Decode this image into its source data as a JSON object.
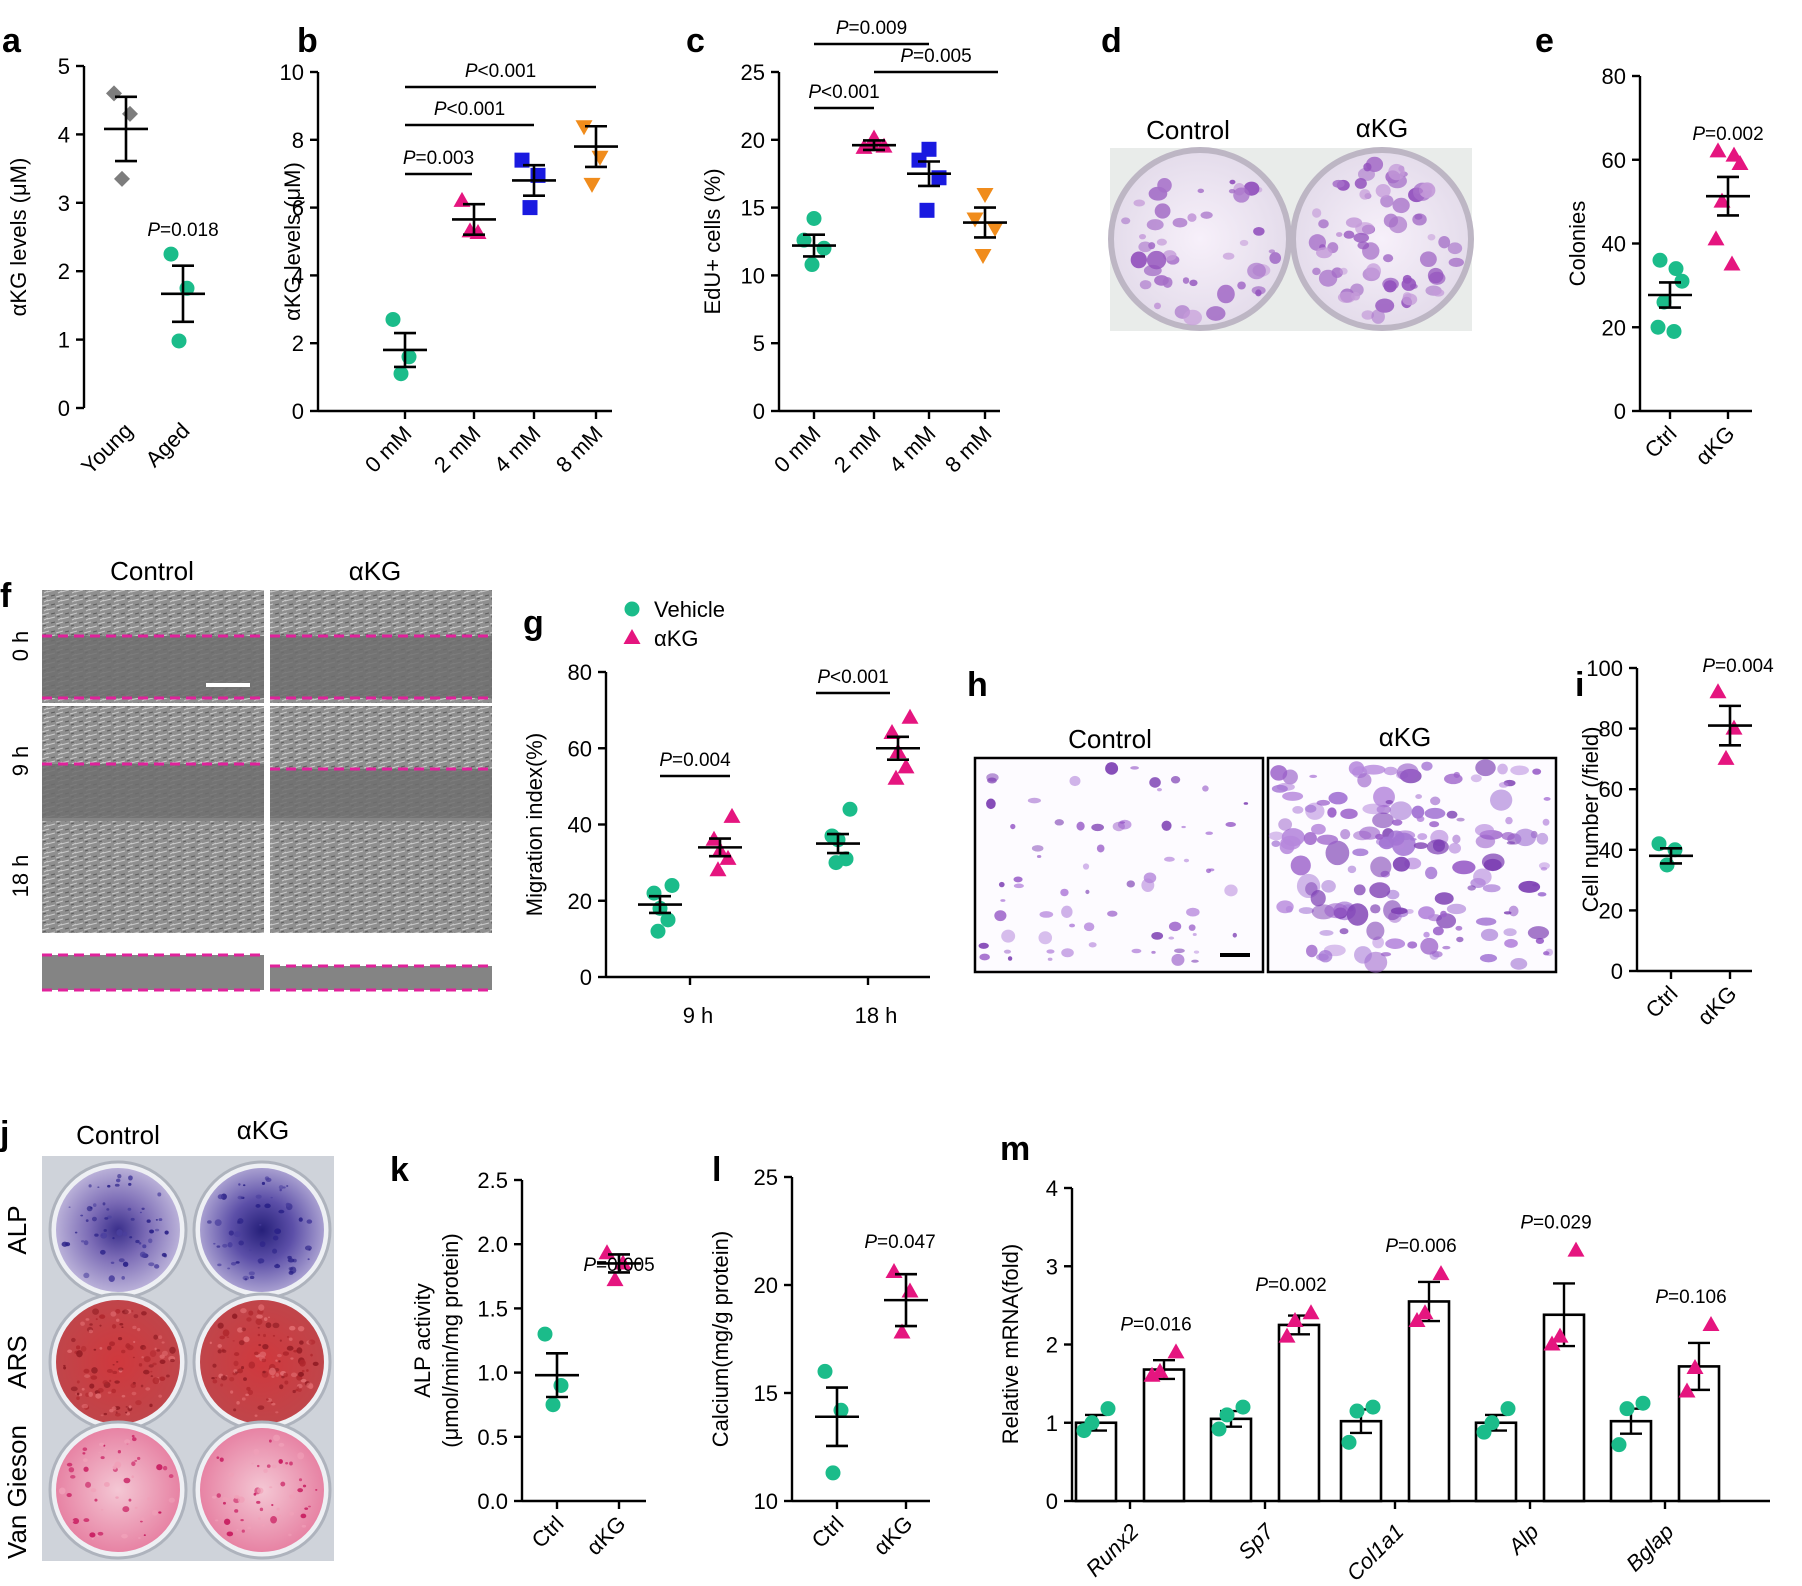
{
  "colors": {
    "green": "#1bbc8a",
    "pink": "#e5157f",
    "gray": "#7d7d7d",
    "blue": "#1a1ae0",
    "orange": "#f08c1c",
    "magenta_line": "#e0229b",
    "stain_purple": "#9a5fc9",
    "stain_red": "#c42a2f"
  },
  "panels": {
    "a": {
      "label": "a",
      "ylabel": "αKG levels (μM)",
      "ylim": [
        0,
        5
      ],
      "yticks": [
        "0",
        "1",
        "2",
        "3",
        "4",
        "5"
      ],
      "categories": [
        "Young",
        "Aged"
      ],
      "p": "P=0.018",
      "groups": [
        {
          "points": [
            4.6,
            4.3,
            3.35
          ],
          "mean": 4.08,
          "sem": 0.47,
          "marker": "diamond",
          "color": "gray"
        },
        {
          "points": [
            2.25,
            1.75,
            0.98
          ],
          "mean": 1.67,
          "sem": 0.41,
          "marker": "circle",
          "color": "green"
        }
      ]
    },
    "b": {
      "label": "b",
      "ylabel": "αKG levels (μM)",
      "ylim": [
        0,
        10
      ],
      "yticks": [
        "0",
        "2",
        "4",
        "6",
        "8",
        "10"
      ],
      "categories": [
        "0 mM",
        "2 mM",
        "4 mM",
        "8 mM"
      ],
      "p": [
        "P=0.003",
        "P<0.001",
        "P<0.001"
      ],
      "groups": [
        {
          "points": [
            2.7,
            1.6,
            1.1
          ],
          "mean": 1.8,
          "sem": 0.5,
          "marker": "circle",
          "color": "green"
        },
        {
          "points": [
            6.2,
            5.25,
            5.3
          ],
          "mean": 5.65,
          "sem": 0.45,
          "marker": "triangle",
          "color": "pink"
        },
        {
          "points": [
            7.4,
            6.95,
            6.0
          ],
          "mean": 6.8,
          "sem": 0.45,
          "marker": "square",
          "color": "blue"
        },
        {
          "points": [
            8.4,
            7.5,
            6.7
          ],
          "mean": 7.8,
          "sem": 0.6,
          "marker": "invtriangle",
          "color": "orange"
        }
      ]
    },
    "c": {
      "label": "c",
      "ylabel": "EdU+ cells (%)",
      "ylim": [
        0,
        25
      ],
      "yticks": [
        "0",
        "5",
        "10",
        "15",
        "20",
        "25"
      ],
      "categories": [
        "0 mM",
        "2 mM",
        "4 mM",
        "8 mM"
      ],
      "p": [
        "P<0.001",
        "P=0.009",
        "P=0.005"
      ],
      "groups": [
        {
          "points": [
            14.2,
            12.6,
            12.0,
            10.8
          ],
          "mean": 12.2,
          "sem": 0.8,
          "marker": "circle",
          "color": "green"
        },
        {
          "points": [
            20.1,
            19.4,
            19.5,
            19.6
          ],
          "mean": 19.6,
          "sem": 0.35,
          "marker": "triangle",
          "color": "pink"
        },
        {
          "points": [
            19.3,
            18.5,
            17.2,
            14.8
          ],
          "mean": 17.5,
          "sem": 0.9,
          "marker": "square",
          "color": "blue"
        },
        {
          "points": [
            16.0,
            14.2,
            13.5,
            11.5
          ],
          "mean": 13.9,
          "sem": 1.1,
          "marker": "invtriangle",
          "color": "orange"
        }
      ]
    },
    "d": {
      "label": "d",
      "titles": [
        "Control",
        "αKG"
      ]
    },
    "e": {
      "label": "e",
      "ylabel": "Colonies",
      "ylim": [
        0,
        80
      ],
      "yticks": [
        "0",
        "20",
        "40",
        "60",
        "80"
      ],
      "categories": [
        "Ctrl",
        "αKG"
      ],
      "p": "P=0.002",
      "groups": [
        {
          "points": [
            36,
            34,
            31,
            26,
            20,
            19
          ],
          "mean": 27.7,
          "sem": 3,
          "marker": "circle",
          "color": "green"
        },
        {
          "points": [
            62,
            61,
            59,
            50,
            41,
            35
          ],
          "mean": 51.3,
          "sem": 4.6,
          "marker": "triangle",
          "color": "pink"
        }
      ]
    },
    "f": {
      "label": "f",
      "titles": [
        "Control",
        "αKG"
      ],
      "rows": [
        "0 h",
        "9 h",
        "18 h"
      ]
    },
    "g": {
      "label": "g",
      "ylabel": "Migration index(%)",
      "ylim": [
        0,
        80
      ],
      "yticks": [
        "0",
        "20",
        "40",
        "60",
        "80"
      ],
      "categories": [
        "9 h",
        "18 h"
      ],
      "legend": [
        "Vehicle",
        "αKG"
      ],
      "p": [
        "P=0.004",
        "P<0.001"
      ],
      "groups": [
        {
          "points": [
            24,
            22,
            18,
            15,
            12
          ],
          "mean": 19,
          "sem": 2.2,
          "marker": "circle",
          "color": "green",
          "cat": 0
        },
        {
          "points": [
            42,
            36,
            33,
            31,
            28
          ],
          "mean": 34,
          "sem": 2.3,
          "marker": "triangle",
          "color": "pink",
          "cat": 0
        },
        {
          "points": [
            44,
            37,
            36,
            31,
            30
          ],
          "mean": 35,
          "sem": 2.5,
          "marker": "circle",
          "color": "green",
          "cat": 1
        },
        {
          "points": [
            68,
            64,
            59,
            55,
            52
          ],
          "mean": 60,
          "sem": 3,
          "marker": "triangle",
          "color": "pink",
          "cat": 1
        }
      ]
    },
    "h": {
      "label": "h",
      "titles": [
        "Control",
        "αKG"
      ]
    },
    "i": {
      "label": "i",
      "ylabel": "Cell number (/field)",
      "ylim": [
        0,
        100
      ],
      "yticks": [
        "0",
        "20",
        "40",
        "60",
        "80",
        "100"
      ],
      "categories": [
        "Ctrl",
        "αKG"
      ],
      "p": "P=0.004",
      "groups": [
        {
          "points": [
            42,
            40,
            35
          ],
          "mean": 38,
          "sem": 2.5,
          "marker": "circle",
          "color": "green"
        },
        {
          "points": [
            92,
            80,
            70
          ],
          "mean": 81,
          "sem": 6.5,
          "marker": "triangle",
          "color": "pink"
        }
      ]
    },
    "j": {
      "label": "j",
      "titles": [
        "Control",
        "αKG"
      ],
      "rows": [
        "ALP",
        "ARS",
        "Van Gieson"
      ]
    },
    "k": {
      "label": "k",
      "ylabel": "ALP activity",
      "ylabel2": "(μmol/min/mg protein)",
      "ylim": [
        0,
        2.5
      ],
      "yticks": [
        "0.0",
        "0.5",
        "1.0",
        "1.5",
        "2.0",
        "2.5"
      ],
      "categories": [
        "Ctrl",
        "αKG"
      ],
      "p": "P=0.005",
      "groups": [
        {
          "points": [
            1.3,
            0.9,
            0.75
          ],
          "mean": 0.98,
          "sem": 0.17,
          "marker": "circle",
          "color": "green"
        },
        {
          "points": [
            1.93,
            1.85,
            1.72
          ],
          "mean": 1.85,
          "sem": 0.07,
          "marker": "triangle",
          "color": "pink"
        }
      ]
    },
    "l": {
      "label": "l",
      "ylabel": "Calcium(mg/g protein)",
      "ylim": [
        10,
        25
      ],
      "yticks": [
        "10",
        "15",
        "20",
        "25"
      ],
      "categories": [
        "Ctrl",
        "αKG"
      ],
      "p": "P=0.047",
      "groups": [
        {
          "points": [
            16,
            14.2,
            11.3
          ],
          "mean": 13.9,
          "sem": 1.35,
          "marker": "circle",
          "color": "green"
        },
        {
          "points": [
            20.6,
            19.7,
            17.8
          ],
          "mean": 19.3,
          "sem": 1.2,
          "marker": "triangle",
          "color": "pink"
        }
      ]
    },
    "m": {
      "label": "m",
      "ylabel": "Relative mRNA(fold)",
      "ylim": [
        0,
        4
      ],
      "yticks": [
        "0",
        "1",
        "2",
        "3",
        "4"
      ],
      "categories": [
        "Runx2",
        "Sp7",
        "Col1a1",
        "Alp",
        "Bglap"
      ],
      "p": [
        "P=0.016",
        "P=0.002",
        "P=0.006",
        "P=0.029",
        "P=0.106"
      ],
      "ctrl": [
        {
          "mean": 1.0,
          "sem": 0.1,
          "points": [
            1.18,
            1.0,
            0.9
          ]
        },
        {
          "mean": 1.05,
          "sem": 0.1,
          "points": [
            1.2,
            1.1,
            0.92
          ]
        },
        {
          "mean": 1.02,
          "sem": 0.15,
          "points": [
            1.2,
            1.15,
            0.75
          ]
        },
        {
          "mean": 1.0,
          "sem": 0.1,
          "points": [
            1.18,
            1.0,
            0.88
          ]
        },
        {
          "mean": 1.02,
          "sem": 0.16,
          "points": [
            1.25,
            1.18,
            0.72
          ]
        }
      ],
      "treat": [
        {
          "mean": 1.68,
          "sem": 0.12,
          "points": [
            1.9,
            1.65,
            1.6
          ]
        },
        {
          "mean": 2.25,
          "sem": 0.12,
          "points": [
            2.4,
            2.3,
            2.1
          ]
        },
        {
          "mean": 2.55,
          "sem": 0.25,
          "points": [
            2.9,
            2.4,
            2.3
          ]
        },
        {
          "mean": 2.38,
          "sem": 0.4,
          "points": [
            3.2,
            2.1,
            2.0
          ]
        },
        {
          "mean": 1.72,
          "sem": 0.3,
          "points": [
            2.25,
            1.7,
            1.4
          ]
        }
      ]
    }
  }
}
